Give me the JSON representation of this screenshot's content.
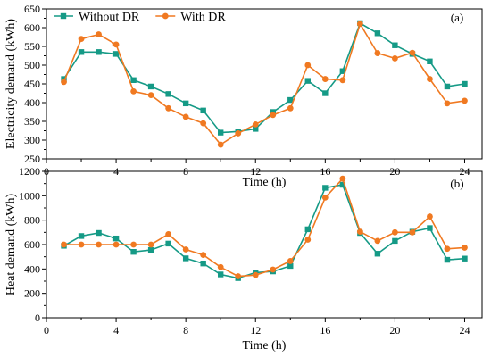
{
  "chart_data": [
    {
      "type": "line",
      "panel_label": "(a)",
      "xlabel": "Time (h)",
      "ylabel": "Electricity demand (kWh)",
      "xlim": [
        0,
        25
      ],
      "ylim": [
        250,
        650
      ],
      "xticks": [
        0,
        4,
        8,
        12,
        16,
        20,
        24
      ],
      "yticks": [
        250,
        300,
        350,
        400,
        450,
        500,
        550,
        600,
        650
      ],
      "legend_placement": "top-left",
      "x": [
        1,
        2,
        3,
        4,
        5,
        6,
        7,
        8,
        9,
        10,
        11,
        12,
        13,
        14,
        15,
        16,
        17,
        18,
        19,
        20,
        21,
        22,
        23,
        24
      ],
      "series": [
        {
          "name": "Without DR",
          "color": "#159a86",
          "marker": "square",
          "values": [
            463,
            535,
            535,
            530,
            460,
            443,
            423,
            398,
            379,
            320,
            323,
            330,
            375,
            407,
            458,
            425,
            484,
            612,
            585,
            553,
            530,
            510,
            443,
            450
          ]
        },
        {
          "name": "With DR",
          "color": "#f07921",
          "marker": "circle",
          "values": [
            455,
            570,
            582,
            555,
            430,
            420,
            385,
            362,
            345,
            288,
            318,
            342,
            367,
            385,
            500,
            463,
            460,
            610,
            532,
            518,
            533,
            463,
            398,
            405
          ]
        }
      ]
    },
    {
      "type": "line",
      "panel_label": "(b)",
      "xlabel": "Time (h)",
      "ylabel": "Heat demand (kWh)",
      "xlim": [
        0,
        25
      ],
      "ylim": [
        0,
        1200
      ],
      "xticks": [
        0,
        4,
        8,
        12,
        16,
        20,
        24
      ],
      "yticks": [
        0,
        200,
        400,
        600,
        800,
        1000,
        1200
      ],
      "x": [
        1,
        2,
        3,
        4,
        5,
        6,
        7,
        8,
        9,
        10,
        11,
        12,
        13,
        14,
        15,
        16,
        17,
        18,
        19,
        20,
        21,
        22,
        23,
        24
      ],
      "series": [
        {
          "name": "Without DR",
          "color": "#159a86",
          "marker": "square",
          "values": [
            590,
            670,
            695,
            650,
            540,
            555,
            608,
            487,
            445,
            355,
            325,
            370,
            380,
            425,
            725,
            1065,
            1090,
            695,
            525,
            630,
            705,
            735,
            475,
            485
          ]
        },
        {
          "name": "With DR",
          "color": "#f07921",
          "marker": "circle",
          "values": [
            600,
            600,
            600,
            600,
            600,
            600,
            685,
            560,
            515,
            415,
            340,
            350,
            395,
            465,
            640,
            985,
            1140,
            705,
            630,
            700,
            700,
            830,
            565,
            575
          ]
        }
      ]
    }
  ]
}
